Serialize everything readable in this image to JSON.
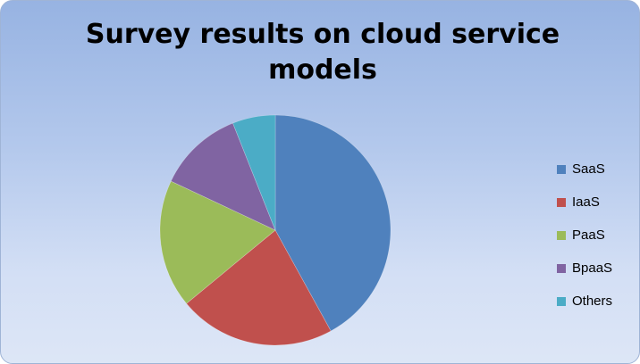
{
  "chart_data": {
    "type": "pie",
    "title": "Survey results on cloud service models",
    "categories": [
      "SaaS",
      "IaaS",
      "PaaS",
      "BpaaS",
      "Others"
    ],
    "values": [
      42,
      22,
      18,
      12,
      6
    ],
    "colors": [
      "#4f81bd",
      "#c0504d",
      "#9bbb59",
      "#8064a2",
      "#4bacc6"
    ],
    "start_angle_deg": 0,
    "direction": "clockwise",
    "legend_position": "right"
  }
}
